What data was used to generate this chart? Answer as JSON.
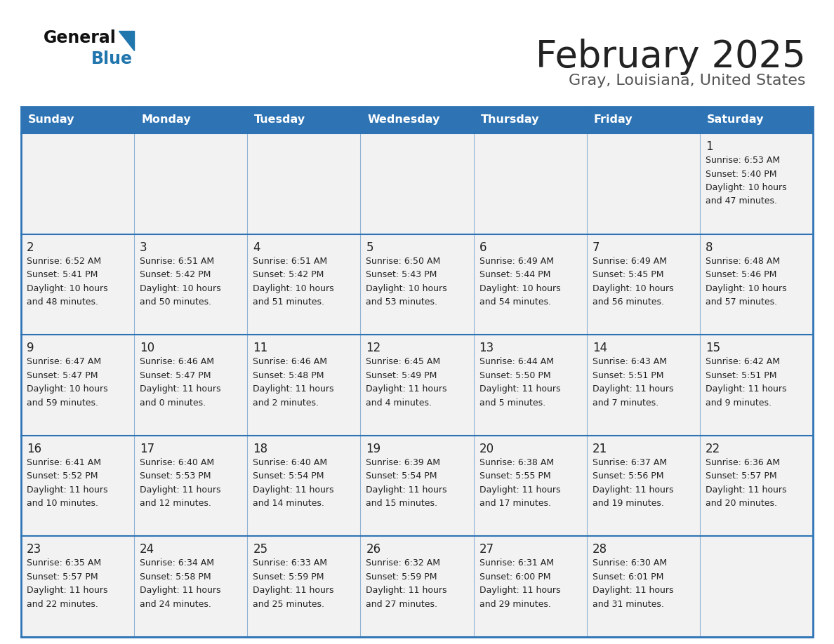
{
  "title": "February 2025",
  "subtitle": "Gray, Louisiana, United States",
  "header_color": "#2e74b5",
  "header_text_color": "#ffffff",
  "cell_bg_color": "#f2f2f2",
  "border_color": "#2e74b5",
  "grid_line_color": "#2e74b5",
  "text_color": "#222222",
  "days_of_week": [
    "Sunday",
    "Monday",
    "Tuesday",
    "Wednesday",
    "Thursday",
    "Friday",
    "Saturday"
  ],
  "weeks": [
    [
      {
        "day": null,
        "sunrise": null,
        "sunset": null,
        "daylight": null
      },
      {
        "day": null,
        "sunrise": null,
        "sunset": null,
        "daylight": null
      },
      {
        "day": null,
        "sunrise": null,
        "sunset": null,
        "daylight": null
      },
      {
        "day": null,
        "sunrise": null,
        "sunset": null,
        "daylight": null
      },
      {
        "day": null,
        "sunrise": null,
        "sunset": null,
        "daylight": null
      },
      {
        "day": null,
        "sunrise": null,
        "sunset": null,
        "daylight": null
      },
      {
        "day": 1,
        "sunrise": "6:53 AM",
        "sunset": "5:40 PM",
        "daylight": "10 hours and 47 minutes."
      }
    ],
    [
      {
        "day": 2,
        "sunrise": "6:52 AM",
        "sunset": "5:41 PM",
        "daylight": "10 hours and 48 minutes."
      },
      {
        "day": 3,
        "sunrise": "6:51 AM",
        "sunset": "5:42 PM",
        "daylight": "10 hours and 50 minutes."
      },
      {
        "day": 4,
        "sunrise": "6:51 AM",
        "sunset": "5:42 PM",
        "daylight": "10 hours and 51 minutes."
      },
      {
        "day": 5,
        "sunrise": "6:50 AM",
        "sunset": "5:43 PM",
        "daylight": "10 hours and 53 minutes."
      },
      {
        "day": 6,
        "sunrise": "6:49 AM",
        "sunset": "5:44 PM",
        "daylight": "10 hours and 54 minutes."
      },
      {
        "day": 7,
        "sunrise": "6:49 AM",
        "sunset": "5:45 PM",
        "daylight": "10 hours and 56 minutes."
      },
      {
        "day": 8,
        "sunrise": "6:48 AM",
        "sunset": "5:46 PM",
        "daylight": "10 hours and 57 minutes."
      }
    ],
    [
      {
        "day": 9,
        "sunrise": "6:47 AM",
        "sunset": "5:47 PM",
        "daylight": "10 hours and 59 minutes."
      },
      {
        "day": 10,
        "sunrise": "6:46 AM",
        "sunset": "5:47 PM",
        "daylight": "11 hours and 0 minutes."
      },
      {
        "day": 11,
        "sunrise": "6:46 AM",
        "sunset": "5:48 PM",
        "daylight": "11 hours and 2 minutes."
      },
      {
        "day": 12,
        "sunrise": "6:45 AM",
        "sunset": "5:49 PM",
        "daylight": "11 hours and 4 minutes."
      },
      {
        "day": 13,
        "sunrise": "6:44 AM",
        "sunset": "5:50 PM",
        "daylight": "11 hours and 5 minutes."
      },
      {
        "day": 14,
        "sunrise": "6:43 AM",
        "sunset": "5:51 PM",
        "daylight": "11 hours and 7 minutes."
      },
      {
        "day": 15,
        "sunrise": "6:42 AM",
        "sunset": "5:51 PM",
        "daylight": "11 hours and 9 minutes."
      }
    ],
    [
      {
        "day": 16,
        "sunrise": "6:41 AM",
        "sunset": "5:52 PM",
        "daylight": "11 hours and 10 minutes."
      },
      {
        "day": 17,
        "sunrise": "6:40 AM",
        "sunset": "5:53 PM",
        "daylight": "11 hours and 12 minutes."
      },
      {
        "day": 18,
        "sunrise": "6:40 AM",
        "sunset": "5:54 PM",
        "daylight": "11 hours and 14 minutes."
      },
      {
        "day": 19,
        "sunrise": "6:39 AM",
        "sunset": "5:54 PM",
        "daylight": "11 hours and 15 minutes."
      },
      {
        "day": 20,
        "sunrise": "6:38 AM",
        "sunset": "5:55 PM",
        "daylight": "11 hours and 17 minutes."
      },
      {
        "day": 21,
        "sunrise": "6:37 AM",
        "sunset": "5:56 PM",
        "daylight": "11 hours and 19 minutes."
      },
      {
        "day": 22,
        "sunrise": "6:36 AM",
        "sunset": "5:57 PM",
        "daylight": "11 hours and 20 minutes."
      }
    ],
    [
      {
        "day": 23,
        "sunrise": "6:35 AM",
        "sunset": "5:57 PM",
        "daylight": "11 hours and 22 minutes."
      },
      {
        "day": 24,
        "sunrise": "6:34 AM",
        "sunset": "5:58 PM",
        "daylight": "11 hours and 24 minutes."
      },
      {
        "day": 25,
        "sunrise": "6:33 AM",
        "sunset": "5:59 PM",
        "daylight": "11 hours and 25 minutes."
      },
      {
        "day": 26,
        "sunrise": "6:32 AM",
        "sunset": "5:59 PM",
        "daylight": "11 hours and 27 minutes."
      },
      {
        "day": 27,
        "sunrise": "6:31 AM",
        "sunset": "6:00 PM",
        "daylight": "11 hours and 29 minutes."
      },
      {
        "day": 28,
        "sunrise": "6:30 AM",
        "sunset": "6:01 PM",
        "daylight": "11 hours and 31 minutes."
      },
      {
        "day": null,
        "sunrise": null,
        "sunset": null,
        "daylight": null
      }
    ]
  ]
}
